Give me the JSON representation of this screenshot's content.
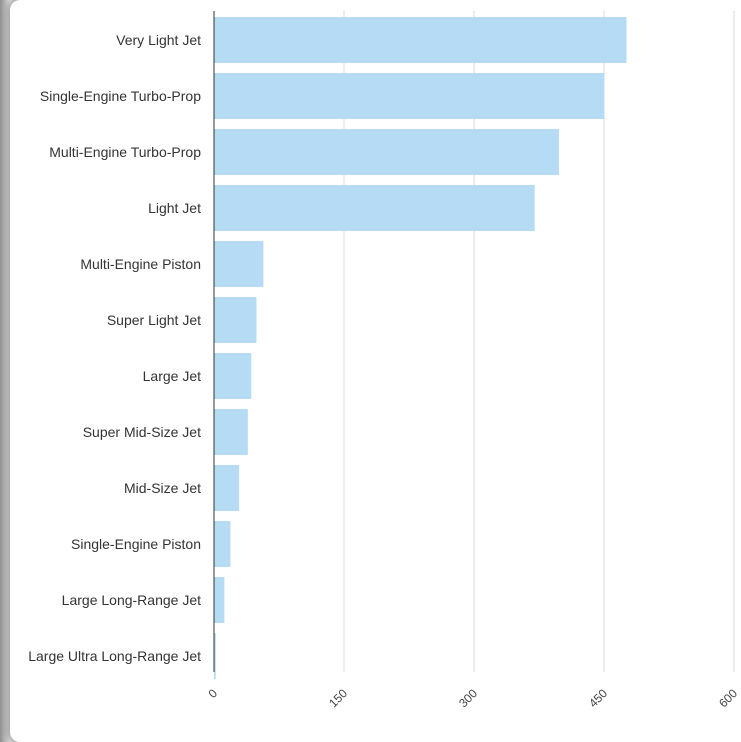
{
  "chart_data": {
    "type": "bar",
    "orientation": "horizontal",
    "categories": [
      "Very Light Jet",
      "Single-Engine Turbo-Prop",
      "Multi-Engine Turbo-Prop",
      "Light Jet",
      "Multi-Engine Piston",
      "Super Light Jet",
      "Large Jet",
      "Super Mid-Size Jet",
      "Mid-Size Jet",
      "Single-Engine Piston",
      "Large Long-Range Jet",
      "Large Ultra Long-Range Jet"
    ],
    "values": [
      476,
      450,
      398,
      370,
      57,
      49,
      43,
      39,
      29,
      19,
      12,
      2
    ],
    "title": "",
    "xlabel": "",
    "ylabel": "",
    "xlim": [
      0,
      600
    ],
    "ticks": [
      0,
      150,
      300,
      450,
      600
    ],
    "tick_labels": [
      "0",
      "150",
      "300",
      "450",
      "600"
    ],
    "grid": true,
    "legend": "none",
    "bar_color": "#b5dbf5",
    "grid_color": "#d9d9d9",
    "axis_color": "#333333"
  }
}
